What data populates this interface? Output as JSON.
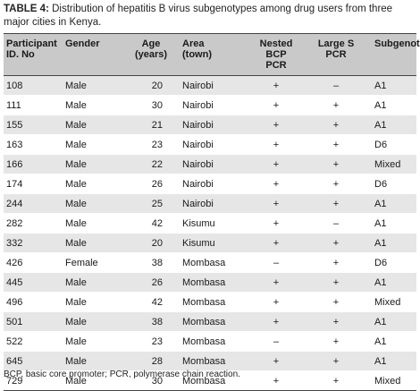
{
  "caption": {
    "label": "TABLE 4:",
    "text": " Distribution of hepatitis B virus subgenotypes among drug users from three major cities in Kenya."
  },
  "columns": [
    [
      "Participant",
      "ID. No"
    ],
    [
      "Gender"
    ],
    [
      "Age",
      "(years)"
    ],
    [
      "Area",
      "(town)"
    ],
    [
      "Nested BCP",
      "PCR"
    ],
    [
      "Large S",
      "PCR"
    ],
    [
      "Subgenotype"
    ]
  ],
  "rows": [
    [
      "108",
      "Male",
      "20",
      "Nairobi",
      "+",
      "–",
      "A1"
    ],
    [
      "111",
      "Male",
      "30",
      "Nairobi",
      "+",
      "+",
      "A1"
    ],
    [
      "155",
      "Male",
      "21",
      "Nairobi",
      "+",
      "+",
      "A1"
    ],
    [
      "163",
      "Male",
      "23",
      "Nairobi",
      "+",
      "+",
      "D6"
    ],
    [
      "166",
      "Male",
      "22",
      "Nairobi",
      "+",
      "+",
      "Mixed"
    ],
    [
      "174",
      "Male",
      "26",
      "Nairobi",
      "+",
      "+",
      "D6"
    ],
    [
      "244",
      "Male",
      "25",
      "Nairobi",
      "+",
      "+",
      "A1"
    ],
    [
      "282",
      "Male",
      "42",
      "Kisumu",
      "+",
      "–",
      "A1"
    ],
    [
      "332",
      "Male",
      "20",
      "Kisumu",
      "+",
      "+",
      "A1"
    ],
    [
      "426",
      "Female",
      "38",
      "Mombasa",
      "–",
      "+",
      "D6"
    ],
    [
      "445",
      "Male",
      "26",
      "Mombasa",
      "+",
      "+",
      "A1"
    ],
    [
      "496",
      "Male",
      "42",
      "Mombasa",
      "+",
      "+",
      "Mixed"
    ],
    [
      "501",
      "Male",
      "38",
      "Mombasa",
      "+",
      "+",
      "A1"
    ],
    [
      "522",
      "Male",
      "23",
      "Mombasa",
      "–",
      "+",
      "A1"
    ],
    [
      "645",
      "Male",
      "28",
      "Mombasa",
      "+",
      "+",
      "A1"
    ],
    [
      "729",
      "Male",
      "30",
      "Mombasa",
      "+",
      "+",
      "Mixed"
    ]
  ],
  "footnote": "BCP, basic core promoter; PCR, polymerase chain reaction."
}
